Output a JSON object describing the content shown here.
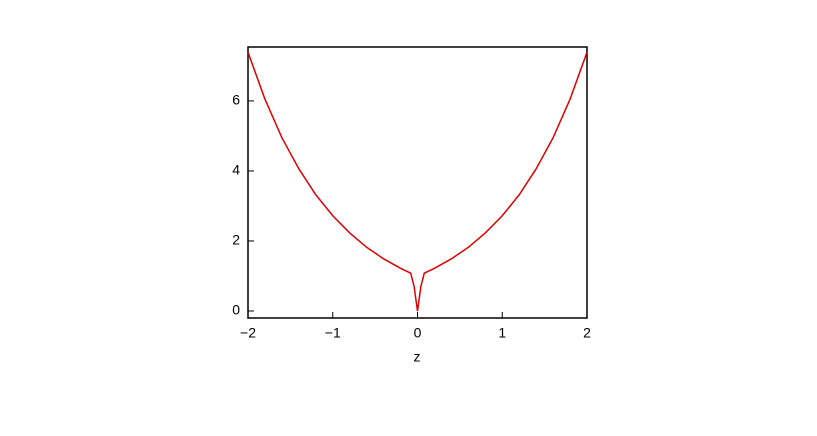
{
  "chart_data": {
    "type": "line",
    "x_label": "z",
    "x": [
      -2,
      -1.8,
      -1.6,
      -1.4,
      -1.2,
      -1,
      -0.8,
      -0.6,
      -0.4,
      -0.2,
      -0.08,
      -0.04,
      -0.02,
      0,
      0.02,
      0.04,
      0.08,
      0.2,
      0.4,
      0.6,
      0.8,
      1,
      1.2,
      1.4,
      1.6,
      1.8,
      2
    ],
    "series": [
      {
        "color": "#e00000",
        "values": [
          7.39,
          6.05,
          4.95,
          4.06,
          3.32,
          2.72,
          2.23,
          1.82,
          1.49,
          1.22,
          1.08,
          0.7,
          0.35,
          0,
          0.35,
          0.7,
          1.08,
          1.22,
          1.49,
          1.82,
          2.23,
          2.72,
          3.32,
          4.06,
          4.95,
          6.05,
          7.39
        ]
      }
    ],
    "xlim": [
      -2,
      2
    ],
    "ylim": [
      -0.2,
      7.54
    ],
    "xticks": [
      {
        "value": -2,
        "label": "−2"
      },
      {
        "value": -1,
        "label": "−1"
      },
      0,
      1,
      2
    ],
    "yticks": [
      0,
      2,
      4,
      6
    ]
  }
}
